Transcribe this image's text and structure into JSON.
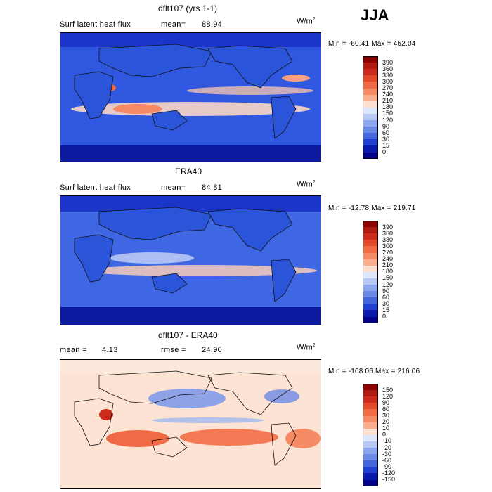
{
  "season": "JJA",
  "panels": [
    {
      "title": "dflt107 (yrs 1-1)",
      "left_label": "Surf latent heat flux",
      "mean_label": "mean=",
      "mean_value": "88.94",
      "unit_base": "W/m",
      "unit_exp": "2",
      "minmax": "Min = -60.41 Max = 452.04",
      "scale_labels": [
        "390",
        "360",
        "330",
        "300",
        "270",
        "240",
        "210",
        "180",
        "150",
        "120",
        "90",
        "60",
        "30",
        "15",
        "0"
      ],
      "scale_colors": [
        "#8b0000",
        "#b01a10",
        "#cc2a1a",
        "#e04a2a",
        "#f06a45",
        "#f58a65",
        "#fab090",
        "#fde0d0",
        "#dde6fa",
        "#b8c8f5",
        "#8ea8ef",
        "#6a88e6",
        "#4466dd",
        "#1f3fd0",
        "#0a1aa8",
        "#00008b"
      ],
      "fill": "cool"
    },
    {
      "title": "ERA40",
      "left_label": "Surf latent heat flux",
      "mean_label": "mean=",
      "mean_value": "84.81",
      "unit_base": "W/m",
      "unit_exp": "2",
      "minmax": "Min = -12.78 Max = 219.71",
      "scale_labels": [
        "390",
        "360",
        "330",
        "300",
        "270",
        "240",
        "210",
        "180",
        "150",
        "120",
        "90",
        "60",
        "30",
        "15",
        "0"
      ],
      "scale_colors": [
        "#8b0000",
        "#b01a10",
        "#cc2a1a",
        "#e04a2a",
        "#f06a45",
        "#f58a65",
        "#fab090",
        "#fde0d0",
        "#dde6fa",
        "#b8c8f5",
        "#8ea8ef",
        "#6a88e6",
        "#4466dd",
        "#1f3fd0",
        "#0a1aa8",
        "#00008b"
      ],
      "fill": "cool"
    },
    {
      "title": "dflt107 - ERA40",
      "left_label": "mean =",
      "mean_label": "",
      "mean_value": "4.13",
      "rmse_label": "rmse =",
      "rmse_value": "24.90",
      "unit_base": "W/m",
      "unit_exp": "2",
      "minmax": "Min = -108.06 Max = 216.06",
      "scale_labels": [
        "150",
        "120",
        "90",
        "60",
        "30",
        "20",
        "10",
        "0",
        "-10",
        "-20",
        "-30",
        "-60",
        "-90",
        "-120",
        "-150"
      ],
      "scale_colors": [
        "#8b0000",
        "#b01a10",
        "#cc2a1a",
        "#e04a2a",
        "#f06a45",
        "#f58a65",
        "#fab090",
        "#fde0d0",
        "#dde6fa",
        "#b8c8f5",
        "#8ea8ef",
        "#6a88e6",
        "#4466dd",
        "#1f3fd0",
        "#0a1aa8",
        "#00008b"
      ],
      "fill": "diff"
    }
  ]
}
